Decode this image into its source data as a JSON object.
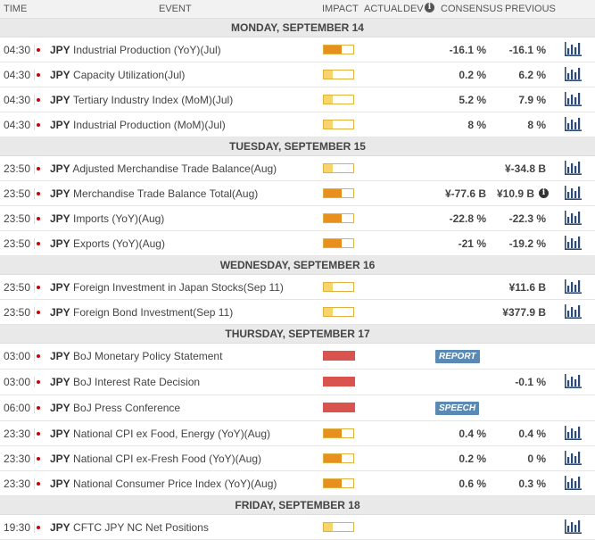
{
  "header": {
    "time": "TIME",
    "event": "EVENT",
    "impact": "IMPACT",
    "actual": "ACTUAL",
    "dev": "DEV",
    "info_icon": "i",
    "consensus": "CONSENSUS",
    "previous": "PREVIOUS"
  },
  "colors": {
    "impact_low": "#f6d66b",
    "impact_medium": "#e8901e",
    "impact_high": "#d9534f",
    "badge": "#5a8ab4"
  },
  "icons": {
    "chart": "bar-chart-icon",
    "flag": "japan-flag-icon"
  },
  "days": [
    {
      "label": "MONDAY, SEPTEMBER 14",
      "events": [
        {
          "time": "04:30",
          "currency": "JPY",
          "name": "Industrial Production (YoY)(Jul)",
          "impact": "medium",
          "consensus": "-16.1 %",
          "previous": "-16.1 %",
          "chart": true
        },
        {
          "time": "04:30",
          "currency": "JPY",
          "name": "Capacity Utilization(Jul)",
          "impact": "low",
          "consensus": "0.2 %",
          "previous": "6.2 %",
          "chart": true
        },
        {
          "time": "04:30",
          "currency": "JPY",
          "name": "Tertiary Industry Index (MoM)(Jul)",
          "impact": "low",
          "consensus": "5.2 %",
          "previous": "7.9 %",
          "chart": true
        },
        {
          "time": "04:30",
          "currency": "JPY",
          "name": "Industrial Production (MoM)(Jul)",
          "impact": "low",
          "consensus": "8 %",
          "previous": "8 %",
          "chart": true
        }
      ]
    },
    {
      "label": "TUESDAY, SEPTEMBER 15",
      "events": [
        {
          "time": "23:50",
          "currency": "JPY",
          "name": "Adjusted Merchandise Trade Balance(Aug)",
          "impact": "low",
          "consensus": "",
          "previous": "¥-34.8 B",
          "chart": true
        },
        {
          "time": "23:50",
          "currency": "JPY",
          "name": "Merchandise Trade Balance Total(Aug)",
          "impact": "medium",
          "consensus": "¥-77.6 B",
          "previous": "¥10.9 B",
          "previous_info": "i",
          "chart": true
        },
        {
          "time": "23:50",
          "currency": "JPY",
          "name": "Imports (YoY)(Aug)",
          "impact": "medium",
          "consensus": "-22.8 %",
          "previous": "-22.3 %",
          "chart": true
        },
        {
          "time": "23:50",
          "currency": "JPY",
          "name": "Exports (YoY)(Aug)",
          "impact": "medium",
          "consensus": "-21 %",
          "previous": "-19.2 %",
          "chart": true
        }
      ]
    },
    {
      "label": "WEDNESDAY, SEPTEMBER 16",
      "events": [
        {
          "time": "23:50",
          "currency": "JPY",
          "name": "Foreign Investment in Japan Stocks(Sep 11)",
          "impact": "low",
          "consensus": "",
          "previous": "¥11.6 B",
          "chart": true
        },
        {
          "time": "23:50",
          "currency": "JPY",
          "name": "Foreign Bond Investment(Sep 11)",
          "impact": "low",
          "consensus": "",
          "previous": "¥377.9 B",
          "chart": true
        }
      ]
    },
    {
      "label": "THURSDAY, SEPTEMBER 17",
      "events": [
        {
          "time": "03:00",
          "currency": "JPY",
          "name": "BoJ Monetary Policy Statement",
          "impact": "high",
          "consensus": "",
          "previous": "",
          "badge": "REPORT",
          "chart": false
        },
        {
          "time": "03:00",
          "currency": "JPY",
          "name": "BoJ Interest Rate Decision",
          "impact": "high",
          "consensus": "",
          "previous": "-0.1 %",
          "chart": true
        },
        {
          "time": "06:00",
          "currency": "JPY",
          "name": "BoJ Press Conference",
          "impact": "high",
          "consensus": "",
          "previous": "",
          "badge": "SPEECH",
          "chart": false
        },
        {
          "time": "23:30",
          "currency": "JPY",
          "name": "National CPI ex Food, Energy (YoY)(Aug)",
          "impact": "medium",
          "consensus": "0.4 %",
          "previous": "0.4 %",
          "chart": true
        },
        {
          "time": "23:30",
          "currency": "JPY",
          "name": "National CPI ex-Fresh Food (YoY)(Aug)",
          "impact": "medium",
          "consensus": "0.2 %",
          "previous": "0 %",
          "chart": true
        },
        {
          "time": "23:30",
          "currency": "JPY",
          "name": "National Consumer Price Index (YoY)(Aug)",
          "impact": "medium",
          "consensus": "0.6 %",
          "previous": "0.3 %",
          "chart": true
        }
      ]
    },
    {
      "label": "FRIDAY, SEPTEMBER 18",
      "events": [
        {
          "time": "19:30",
          "currency": "JPY",
          "name": "CFTC JPY NC Net Positions",
          "impact": "low",
          "consensus": "",
          "previous": "",
          "chart": true
        }
      ]
    }
  ]
}
